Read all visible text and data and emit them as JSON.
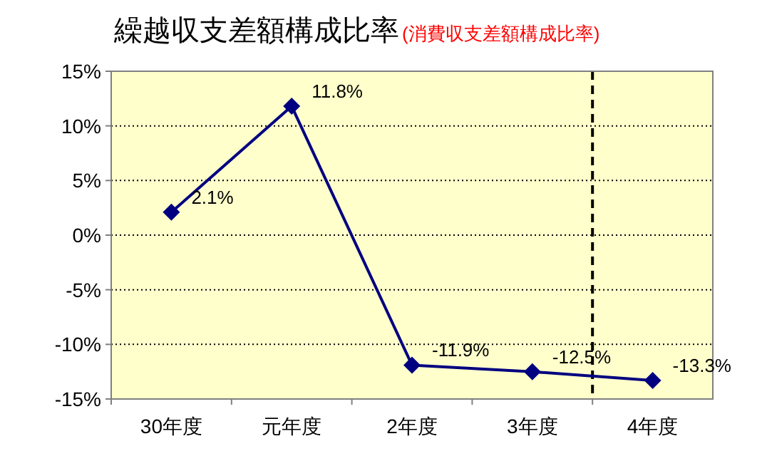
{
  "chart_data": {
    "type": "line",
    "title": "繰越収支差額構成比率",
    "subtitle": "(消費収支差額構成比率)",
    "categories": [
      "30年度",
      "元年度",
      "2年度",
      "3年度",
      "4年度"
    ],
    "series": [
      {
        "color": "#000080",
        "values": [
          2.1,
          11.8,
          -11.9,
          -12.5,
          -13.3
        ],
        "value_labels": [
          "2.1%",
          "11.8%",
          "-11.9%",
          "-12.5%",
          "-13.3%"
        ]
      }
    ],
    "ylim": [
      -15,
      15
    ],
    "yticks": [
      {
        "value": 15,
        "label": "15%"
      },
      {
        "value": 10,
        "label": "10%"
      },
      {
        "value": 5,
        "label": "5%"
      },
      {
        "value": 0,
        "label": "0%"
      },
      {
        "value": -5,
        "label": "-5%"
      },
      {
        "value": -10,
        "label": "-10%"
      },
      {
        "value": -15,
        "label": "-15%"
      }
    ],
    "grid": "y",
    "marker": "diamond",
    "line_style": "solid"
  }
}
